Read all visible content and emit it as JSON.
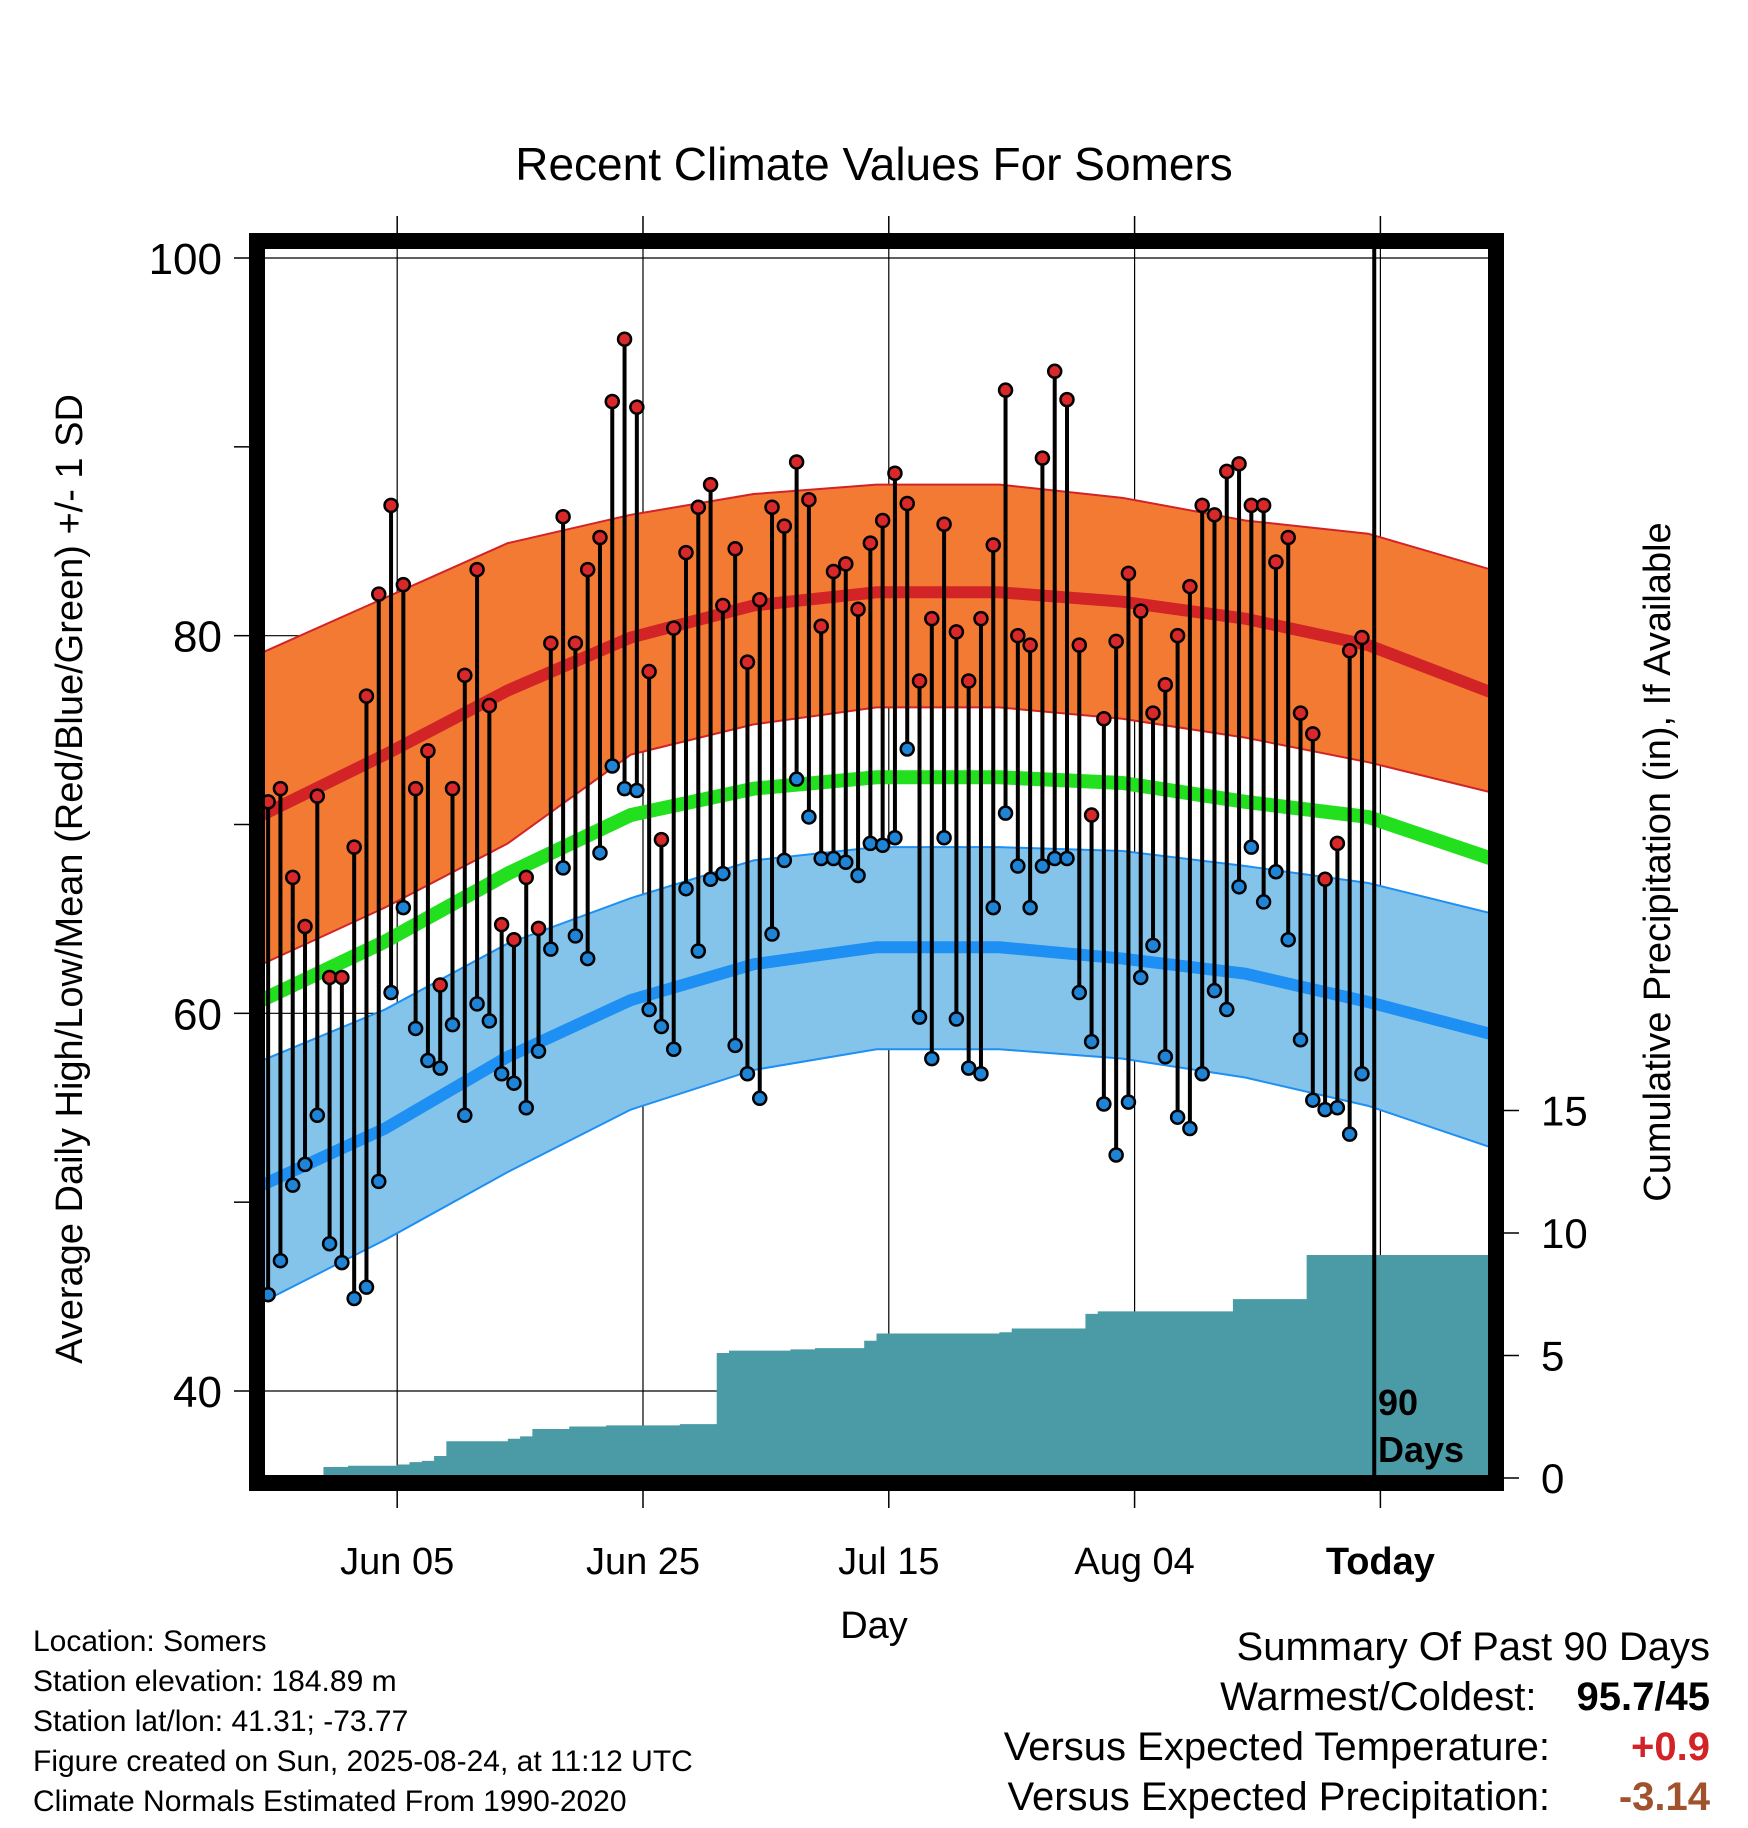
{
  "chart_data": {
    "type": "line",
    "title": "Recent Climate Values For Somers",
    "xlabel": "Day",
    "ylabel": "Average Daily High/Low/Mean (Red/Blue/Green) +/- 1 SD",
    "y2label": "Cumulative Precipitation (in), If Available",
    "ylim": [
      35.5,
      100.8
    ],
    "y2lim": [
      0,
      19.7
    ],
    "y_ticks": [
      "100",
      "80",
      "60",
      "40"
    ],
    "y2_ticks": [
      "0",
      "5",
      "10",
      "15"
    ],
    "x_ticks": [
      {
        "day": 11,
        "label": "Jun 05"
      },
      {
        "day": 31,
        "label": "Jun 25"
      },
      {
        "day": 51,
        "label": "Jul 15"
      },
      {
        "day": 71,
        "label": "Aug 04"
      },
      {
        "day": 91,
        "label": "Today"
      }
    ],
    "today_marker_label_line1": "90",
    "today_marker_label_line2": "Days",
    "normals": {
      "days": [
        0,
        10,
        20,
        30,
        40,
        50,
        60,
        70,
        80,
        90,
        100
      ],
      "high_mean": [
        70.5,
        73.7,
        77.1,
        79.9,
        81.6,
        82.3,
        82.3,
        81.8,
        80.9,
        79.5,
        77.0
      ],
      "high_upper": [
        79.1,
        82.0,
        84.9,
        86.4,
        87.5,
        88.0,
        88.0,
        87.3,
        86.1,
        85.4,
        83.5
      ],
      "high_lower": [
        62.6,
        65.6,
        69.0,
        73.7,
        75.3,
        76.2,
        76.2,
        75.6,
        74.6,
        73.3,
        71.7
      ],
      "mean": [
        60.7,
        63.8,
        67.4,
        70.5,
        71.9,
        72.5,
        72.5,
        72.2,
        71.2,
        70.4,
        68.2
      ],
      "low_mean": [
        50.9,
        53.9,
        57.7,
        60.7,
        62.6,
        63.5,
        63.5,
        62.9,
        62.1,
        60.6,
        58.9
      ],
      "low_upper": [
        57.5,
        60.2,
        63.7,
        66.1,
        68.1,
        68.8,
        68.8,
        68.6,
        67.8,
        66.9,
        65.3
      ],
      "low_lower": [
        44.7,
        48.0,
        51.6,
        54.9,
        57.0,
        58.1,
        58.1,
        57.6,
        56.6,
        55.1,
        52.9
      ]
    },
    "series": [
      {
        "name": "High",
        "values": [
          71.2,
          71.9,
          67.2,
          64.6,
          71.5,
          61.9,
          61.9,
          68.8,
          76.8,
          82.2,
          86.9,
          82.7,
          71.9,
          73.9,
          61.5,
          71.9,
          77.9,
          83.5,
          76.3,
          64.7,
          63.9,
          67.2,
          64.5,
          79.6,
          86.3,
          79.6,
          83.5,
          85.2,
          92.4,
          95.7,
          92.1,
          78.1,
          69.2,
          80.4,
          84.4,
          86.8,
          88.0,
          81.6,
          84.6,
          78.6,
          81.9,
          86.8,
          85.8,
          89.2,
          87.2,
          80.5,
          83.4,
          83.8,
          81.4,
          84.9,
          86.1,
          88.6,
          87.0,
          77.6,
          80.9,
          85.9,
          80.2,
          77.6,
          80.9,
          84.8,
          93.0,
          80.0,
          79.5,
          89.4,
          94.0,
          92.5,
          79.5,
          70.5,
          75.6,
          79.7,
          83.3,
          81.3,
          75.9,
          77.4,
          80.0,
          82.6,
          86.9,
          86.4,
          88.7,
          89.1,
          86.9,
          86.9,
          83.9,
          85.2,
          75.9,
          74.8,
          67.1,
          69.0,
          79.2,
          79.9
        ]
      },
      {
        "name": "Low",
        "values": [
          45.1,
          46.9,
          50.9,
          52.0,
          54.6,
          47.8,
          46.8,
          44.9,
          45.5,
          51.1,
          61.1,
          65.6,
          59.2,
          57.5,
          57.1,
          59.4,
          54.6,
          60.5,
          59.6,
          56.8,
          56.3,
          55.0,
          58.0,
          63.4,
          67.7,
          64.1,
          62.9,
          68.5,
          73.1,
          71.9,
          71.8,
          60.2,
          59.3,
          58.1,
          66.6,
          63.3,
          67.1,
          67.4,
          58.3,
          56.8,
          55.5,
          64.2,
          68.1,
          72.4,
          70.4,
          68.2,
          68.2,
          68.0,
          67.3,
          69.0,
          68.9,
          69.3,
          74.0,
          59.8,
          57.6,
          69.3,
          59.7,
          57.1,
          56.8,
          65.6,
          70.6,
          67.8,
          65.6,
          67.8,
          68.2,
          68.2,
          61.1,
          58.5,
          55.2,
          52.5,
          55.3,
          61.9,
          63.6,
          57.7,
          54.5,
          53.9,
          56.8,
          61.2,
          60.2,
          66.7,
          68.8,
          65.9,
          67.5,
          63.9,
          58.6,
          55.4,
          54.9,
          55.0,
          53.6,
          56.8
        ]
      },
      {
        "name": "Cumulative Precipitation",
        "values": [
          0.0,
          0.0,
          0.0,
          0.0,
          0.0,
          0.45,
          0.45,
          0.5,
          0.5,
          0.5,
          0.5,
          0.55,
          0.65,
          0.7,
          0.9,
          1.5,
          1.5,
          1.5,
          1.5,
          1.5,
          1.6,
          1.7,
          2.0,
          2.0,
          2.0,
          2.1,
          2.1,
          2.1,
          2.15,
          2.15,
          2.15,
          2.15,
          2.15,
          2.15,
          2.2,
          2.2,
          2.2,
          5.1,
          5.2,
          5.2,
          5.2,
          5.2,
          5.2,
          5.25,
          5.25,
          5.3,
          5.3,
          5.3,
          5.3,
          5.6,
          5.9,
          5.9,
          5.9,
          5.9,
          5.9,
          5.9,
          5.9,
          5.9,
          5.9,
          5.9,
          5.95,
          6.1,
          6.1,
          6.1,
          6.1,
          6.1,
          6.1,
          6.7,
          6.8,
          6.8,
          6.8,
          6.8,
          6.8,
          6.8,
          6.8,
          6.8,
          6.8,
          6.8,
          6.8,
          7.3,
          7.3,
          7.3,
          7.3,
          7.3,
          7.3,
          9.1,
          9.1,
          9.1,
          9.1,
          9.1,
          9.1,
          9.1,
          9.1,
          9.1,
          9.1,
          9.1,
          9.1,
          9.1,
          9.1,
          9.1,
          9.1
        ]
      }
    ],
    "grid": true,
    "colors": {
      "high_band": "#f37a33",
      "high_line": "#d22327",
      "mean_line": "#22e01d",
      "low_band": "#85c4ea",
      "low_line": "#1e8ff3",
      "precip": "#4a9ba5",
      "high_dot": "#d9282a",
      "low_dot": "#1f84d6"
    }
  },
  "info": {
    "location": "Location: Somers",
    "elevation": "Station elevation: 184.89 m",
    "latlon": "Station lat/lon: 41.31; -73.77",
    "created": "Figure created on Sun, 2025-08-24, at 11:12 UTC",
    "normals": "Climate Normals Estimated From 1990-2020"
  },
  "summary": {
    "title": "Summary Of Past 90 Days",
    "warmest_label": "Warmest/Coldest:",
    "warmest_value": "95.7/45",
    "temp_label": "Versus Expected Temperature:",
    "temp_value": "+0.9",
    "temp_color": "#d22327",
    "precip_label": "Versus Expected Precipitation:",
    "precip_value": "-3.14",
    "precip_color": "#a0522d"
  }
}
